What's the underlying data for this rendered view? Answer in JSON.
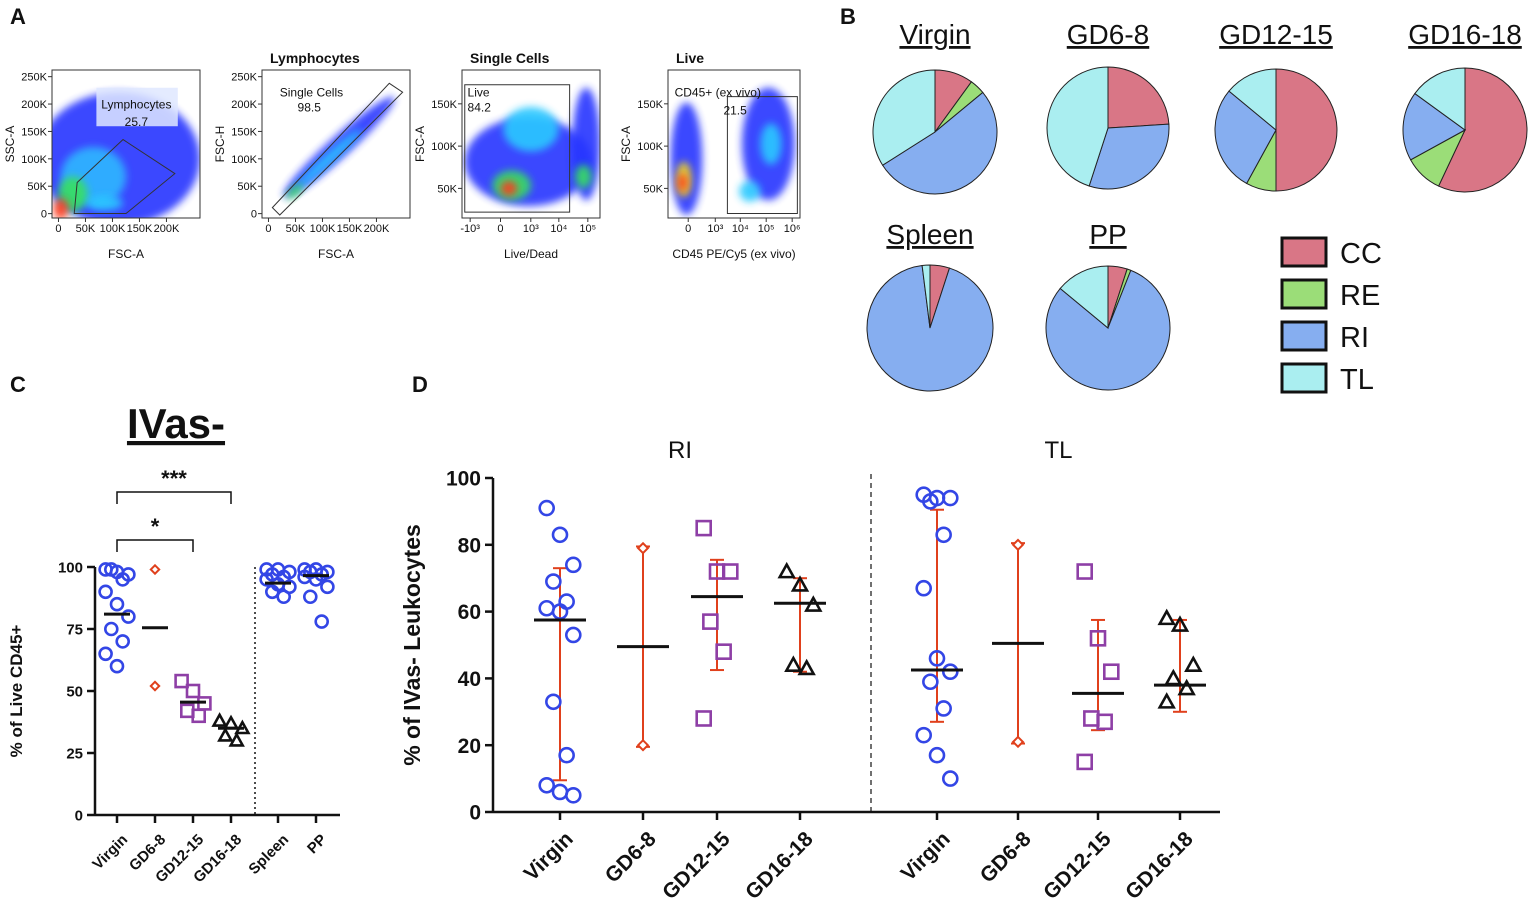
{
  "panel_labels": [
    "A",
    "B",
    "C",
    "D"
  ],
  "chart_data": [
    {
      "type": "density",
      "ylabel": "SSC-A",
      "xlabel": "FSC-A",
      "xlim": [
        -12000,
        262144
      ],
      "ylim": [
        -8000,
        262144
      ],
      "xticks": [
        0,
        {
          "value": 50000,
          "label": "50K"
        },
        {
          "value": 100000,
          "label": "100K"
        },
        {
          "value": 150000,
          "label": "150K"
        },
        {
          "value": 200000,
          "label": "200K"
        }
      ],
      "yticks": [
        0,
        {
          "value": 50000,
          "label": "50K"
        },
        {
          "value": 100000,
          "label": "100K"
        },
        {
          "value": 150000,
          "label": "150K"
        },
        {
          "value": 200000,
          "label": "200K"
        },
        {
          "value": 250000,
          "label": "250K"
        }
      ],
      "gate_name": "Lymphocytes",
      "gate_value": 25.7
    },
    {
      "type": "density",
      "title": "Lymphocytes",
      "ylabel": "FSC-H",
      "xlabel": "FSC-A",
      "xlim": [
        -12000,
        262144
      ],
      "ylim": [
        -8000,
        262144
      ],
      "xticks": [
        0,
        {
          "value": 50000,
          "label": "50K"
        },
        {
          "value": 100000,
          "label": "100K"
        },
        {
          "value": 150000,
          "label": "150K"
        },
        {
          "value": 200000,
          "label": "200K"
        }
      ],
      "yticks": [
        0,
        {
          "value": 50000,
          "label": "50K"
        },
        {
          "value": 100000,
          "label": "100K"
        },
        {
          "value": 150000,
          "label": "150K"
        },
        {
          "value": 200000,
          "label": "200K"
        },
        {
          "value": 250000,
          "label": "250K"
        }
      ],
      "gate_name": "Single Cells",
      "gate_value": 98.5
    },
    {
      "type": "density",
      "title": "Single Cells",
      "ylabel": "FSC-A",
      "xlabel": "Live/Dead",
      "xscale": "biex",
      "xlim": [
        -2000,
        262144
      ],
      "ylim": [
        15000,
        190000
      ],
      "xticks": [
        {
          "value": -1000,
          "label": "-10³"
        },
        0,
        {
          "value": 1000,
          "label": "10³"
        },
        {
          "value": 10000,
          "label": "10⁴"
        },
        {
          "value": 100000,
          "label": "10⁵"
        }
      ],
      "yticks": [
        {
          "value": 50000,
          "label": "50K"
        },
        {
          "value": 100000,
          "label": "100K"
        },
        {
          "value": 150000,
          "label": "150K"
        }
      ],
      "gate_name": "Live",
      "gate_value": 84.2
    },
    {
      "type": "density",
      "title": "Live",
      "ylabel": "FSC-A",
      "xlabel": "CD45 PE/Cy5 (ex vivo)",
      "xscale": "biex",
      "xlim": [
        -500,
        2000000
      ],
      "ylim": [
        15000,
        190000
      ],
      "xticks": [
        0,
        {
          "value": 1000,
          "label": "10³"
        },
        {
          "value": 10000,
          "label": "10⁴"
        },
        {
          "value": 100000,
          "label": "10⁵"
        },
        {
          "value": 1000000,
          "label": "10⁶"
        }
      ],
      "yticks": [
        {
          "value": 50000,
          "label": "50K"
        },
        {
          "value": 100000,
          "label": "100K"
        },
        {
          "value": 150000,
          "label": "150K"
        }
      ],
      "gate_name": "CD45+ (ex vivo)",
      "gate_value": 21.5
    },
    {
      "type": "pie",
      "title": "Virgin",
      "categories": [
        "CC",
        "RE",
        "RI",
        "TL"
      ],
      "values": [
        10,
        4,
        52,
        34
      ],
      "colors": [
        "#d97686",
        "#9bdd78",
        "#86aef0",
        "#aaeef0"
      ]
    },
    {
      "type": "pie",
      "title": "GD6-8",
      "categories": [
        "CC",
        "RE",
        "RI",
        "TL"
      ],
      "values": [
        24,
        0,
        31,
        45
      ],
      "colors": [
        "#d97686",
        "#9bdd78",
        "#86aef0",
        "#aaeef0"
      ]
    },
    {
      "type": "pie",
      "title": "GD12-15",
      "categories": [
        "CC",
        "RE",
        "RI",
        "TL"
      ],
      "values": [
        50,
        8,
        28,
        14
      ],
      "colors": [
        "#d97686",
        "#9bdd78",
        "#86aef0",
        "#aaeef0"
      ]
    },
    {
      "type": "pie",
      "title": "GD16-18",
      "categories": [
        "CC",
        "RE",
        "RI",
        "TL"
      ],
      "values": [
        57,
        10,
        18,
        15
      ],
      "colors": [
        "#d97686",
        "#9bdd78",
        "#86aef0",
        "#aaeef0"
      ]
    },
    {
      "type": "pie",
      "title": "Spleen",
      "categories": [
        "CC",
        "RE",
        "RI",
        "TL"
      ],
      "values": [
        5,
        0,
        93,
        2
      ],
      "colors": [
        "#d97686",
        "#9bdd78",
        "#86aef0",
        "#aaeef0"
      ]
    },
    {
      "type": "pie",
      "title": "PP",
      "categories": [
        "CC",
        "RE",
        "RI",
        "TL"
      ],
      "values": [
        5,
        1,
        80,
        14
      ],
      "colors": [
        "#d97686",
        "#9bdd78",
        "#86aef0",
        "#aaeef0"
      ]
    },
    {
      "type": "dot",
      "title": "IVas-",
      "ylabel": "% of Live CD45+",
      "ylim": [
        0,
        100
      ],
      "yticks": [
        0,
        25,
        50,
        75,
        100
      ],
      "categories": [
        "Virgin",
        "GD6-8",
        "GD12-15",
        "GD16-18",
        "Spleen",
        "PP"
      ],
      "markers": [
        "circle",
        "diamond",
        "square",
        "triangle",
        "circle",
        "circle"
      ],
      "colors": [
        "#3346e6",
        "#e0401c",
        "#8e3fa6",
        "#111111",
        "#3346e6",
        "#3346e6"
      ],
      "points": [
        [
          99,
          98,
          97,
          99,
          95,
          90,
          85,
          80,
          75,
          70,
          65,
          60
        ],
        [
          99,
          52
        ],
        [
          54,
          50,
          45,
          42,
          40
        ],
        [
          38,
          37,
          35,
          32,
          30
        ],
        [
          99,
          99,
          98,
          97,
          96,
          95,
          93,
          92,
          90,
          88
        ],
        [
          99,
          99,
          98,
          98,
          97,
          96,
          95,
          92,
          88,
          78
        ]
      ],
      "means": [
        81,
        75.5,
        45.5,
        35,
        93.5,
        96.5
      ],
      "annotations": [
        {
          "text": "*",
          "groups": [
            0,
            2
          ]
        },
        {
          "text": "***",
          "groups": [
            0,
            3
          ]
        }
      ]
    },
    {
      "type": "dot",
      "ylabel": "% of IVas- Leukocytes",
      "ylim": [
        0,
        100
      ],
      "yticks": [
        0,
        20,
        40,
        60,
        80,
        100
      ],
      "markers": [
        "circle",
        "diamond",
        "square",
        "triangle"
      ],
      "colors": [
        "#3346e6",
        "#e0401c",
        "#8e3fa6",
        "#111111"
      ],
      "error_color": "#e0401c",
      "groups": [
        {
          "title": "RI",
          "categories": [
            "Virgin",
            "GD6-8",
            "GD12-15",
            "GD16-18"
          ],
          "points": [
            [
              91,
              83,
              74,
              69,
              63,
              61,
              60,
              53,
              33,
              17,
              8,
              6,
              5
            ],
            [
              79,
              20
            ],
            [
              85,
              72,
              72,
              57,
              48,
              28
            ],
            [
              72,
              68,
              62,
              44,
              43
            ]
          ],
          "means": [
            57.5,
            49.5,
            64.5,
            62.5
          ],
          "lower": [
            9.5,
            19.5,
            42.5,
            42
          ],
          "upper": [
            73,
            79.5,
            75.5,
            70
          ]
        },
        {
          "title": "TL",
          "categories": [
            "Virgin",
            "GD6-8",
            "GD12-15",
            "GD16-18"
          ],
          "points": [
            [
              95,
              94,
              94,
              93,
              83,
              67,
              46,
              42,
              39,
              31,
              23,
              17,
              10
            ],
            [
              80,
              21
            ],
            [
              72,
              52,
              42,
              28,
              27,
              15
            ],
            [
              58,
              56,
              44,
              40,
              37,
              33
            ]
          ],
          "means": [
            42.5,
            50.5,
            35.5,
            38
          ],
          "lower": [
            27,
            20.5,
            24.5,
            30
          ],
          "upper": [
            90.5,
            80.5,
            57.5,
            57.5
          ]
        }
      ]
    }
  ]
}
